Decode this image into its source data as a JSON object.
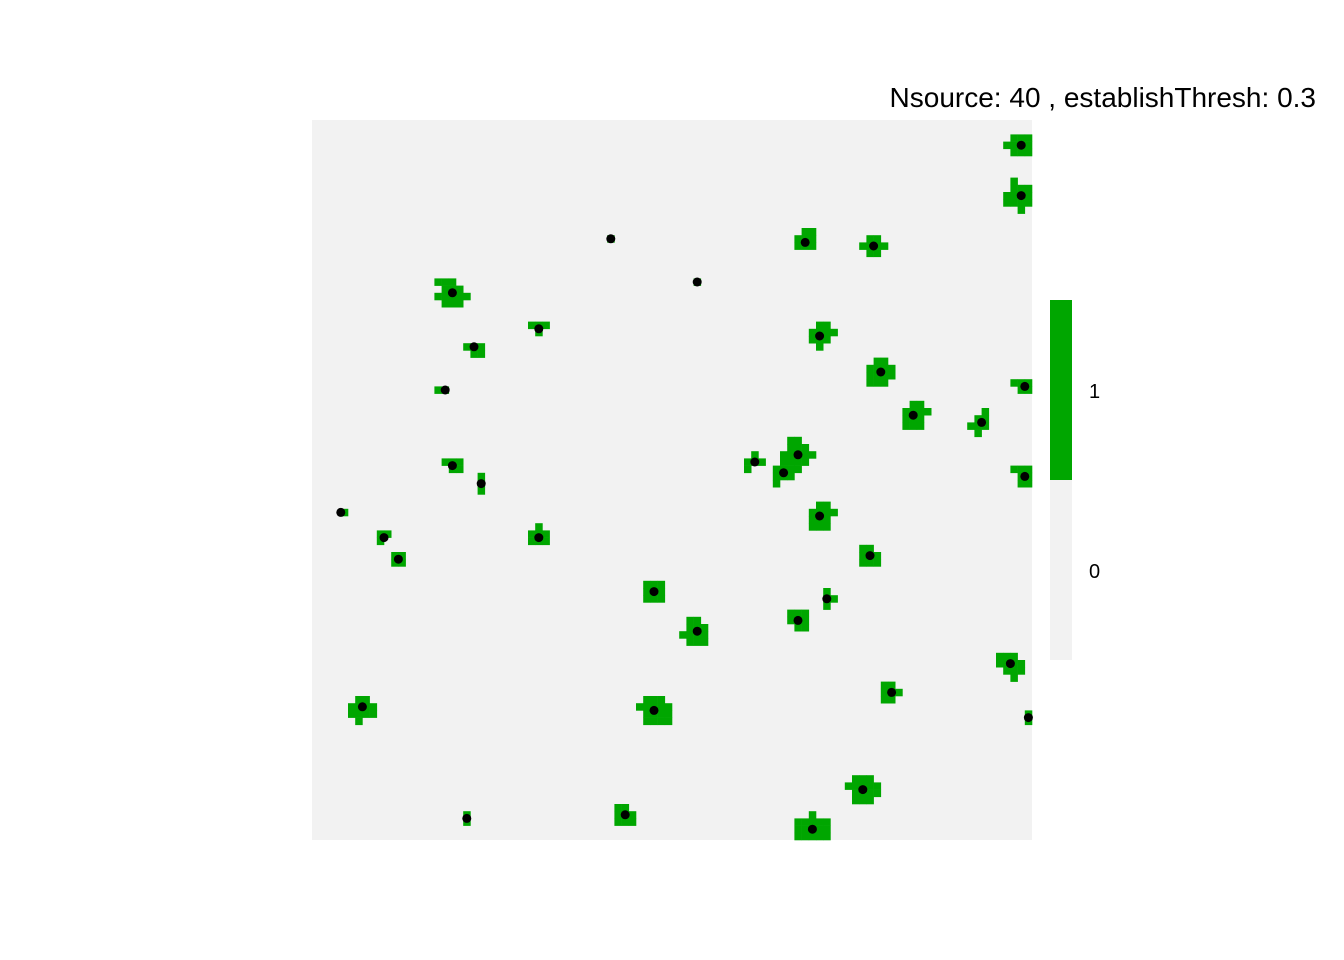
{
  "chart_data": {
    "type": "heatmap",
    "title": "Nsource: 40 , establishThresh: 0.3",
    "xlabel": "",
    "ylabel": "",
    "axes_visible": false,
    "grid": false,
    "xlim": [
      0,
      100
    ],
    "ylim": [
      0,
      100
    ],
    "legend": {
      "placement": "right",
      "levels": [
        {
          "value": 0,
          "label": "0",
          "color": "#f2f2f2"
        },
        {
          "value": 1,
          "label": "1",
          "color": "#00a600"
        }
      ]
    },
    "colors": {
      "background": "#f2f2f2",
      "established": "#00a600",
      "source_point": "#000000"
    },
    "patches": [
      {
        "x": 98.5,
        "y": 96.5,
        "r": 1.6
      },
      {
        "x": 98.5,
        "y": 89.5,
        "r": 1.8
      },
      {
        "x": 41.5,
        "y": 83.5,
        "r": 0.6
      },
      {
        "x": 68.5,
        "y": 83,
        "r": 1.2
      },
      {
        "x": 78,
        "y": 82.5,
        "r": 1.4
      },
      {
        "x": 53.5,
        "y": 77.5,
        "r": 0.5
      },
      {
        "x": 19.5,
        "y": 76,
        "r": 2
      },
      {
        "x": 31.5,
        "y": 71,
        "r": 1
      },
      {
        "x": 22.5,
        "y": 68.5,
        "r": 1.2
      },
      {
        "x": 70.5,
        "y": 70,
        "r": 1.6
      },
      {
        "x": 79,
        "y": 65,
        "r": 2
      },
      {
        "x": 18.5,
        "y": 62.5,
        "r": 0.6
      },
      {
        "x": 99,
        "y": 63,
        "r": 1.2
      },
      {
        "x": 83.5,
        "y": 59,
        "r": 1.6
      },
      {
        "x": 93,
        "y": 58,
        "r": 1.3
      },
      {
        "x": 67.5,
        "y": 53.5,
        "r": 2
      },
      {
        "x": 61.5,
        "y": 52.5,
        "r": 1.2
      },
      {
        "x": 65.5,
        "y": 51,
        "r": 1.4
      },
      {
        "x": 19.5,
        "y": 52,
        "r": 1
      },
      {
        "x": 23.5,
        "y": 49.5,
        "r": 0.8
      },
      {
        "x": 99,
        "y": 50.5,
        "r": 1.2
      },
      {
        "x": 70.5,
        "y": 45,
        "r": 1.8
      },
      {
        "x": 4,
        "y": 45.5,
        "r": 0.6
      },
      {
        "x": 31.5,
        "y": 42,
        "r": 1.2
      },
      {
        "x": 10,
        "y": 42,
        "r": 0.9
      },
      {
        "x": 12,
        "y": 39,
        "r": 0.9
      },
      {
        "x": 77.5,
        "y": 39.5,
        "r": 1.6
      },
      {
        "x": 47.5,
        "y": 34.5,
        "r": 1.6
      },
      {
        "x": 71.5,
        "y": 33.5,
        "r": 0.8
      },
      {
        "x": 67.5,
        "y": 30.5,
        "r": 1.2
      },
      {
        "x": 53.5,
        "y": 29,
        "r": 1.8
      },
      {
        "x": 97,
        "y": 24.5,
        "r": 1.8
      },
      {
        "x": 80.5,
        "y": 20.5,
        "r": 1.4
      },
      {
        "x": 7,
        "y": 18.5,
        "r": 1.8
      },
      {
        "x": 47.5,
        "y": 18,
        "r": 2.2
      },
      {
        "x": 99.5,
        "y": 17,
        "r": 0.7
      },
      {
        "x": 76.5,
        "y": 7,
        "r": 1.8
      },
      {
        "x": 21.5,
        "y": 3,
        "r": 0.5
      },
      {
        "x": 43.5,
        "y": 3.5,
        "r": 1.4
      },
      {
        "x": 69.5,
        "y": 1.5,
        "r": 2.2
      }
    ]
  }
}
